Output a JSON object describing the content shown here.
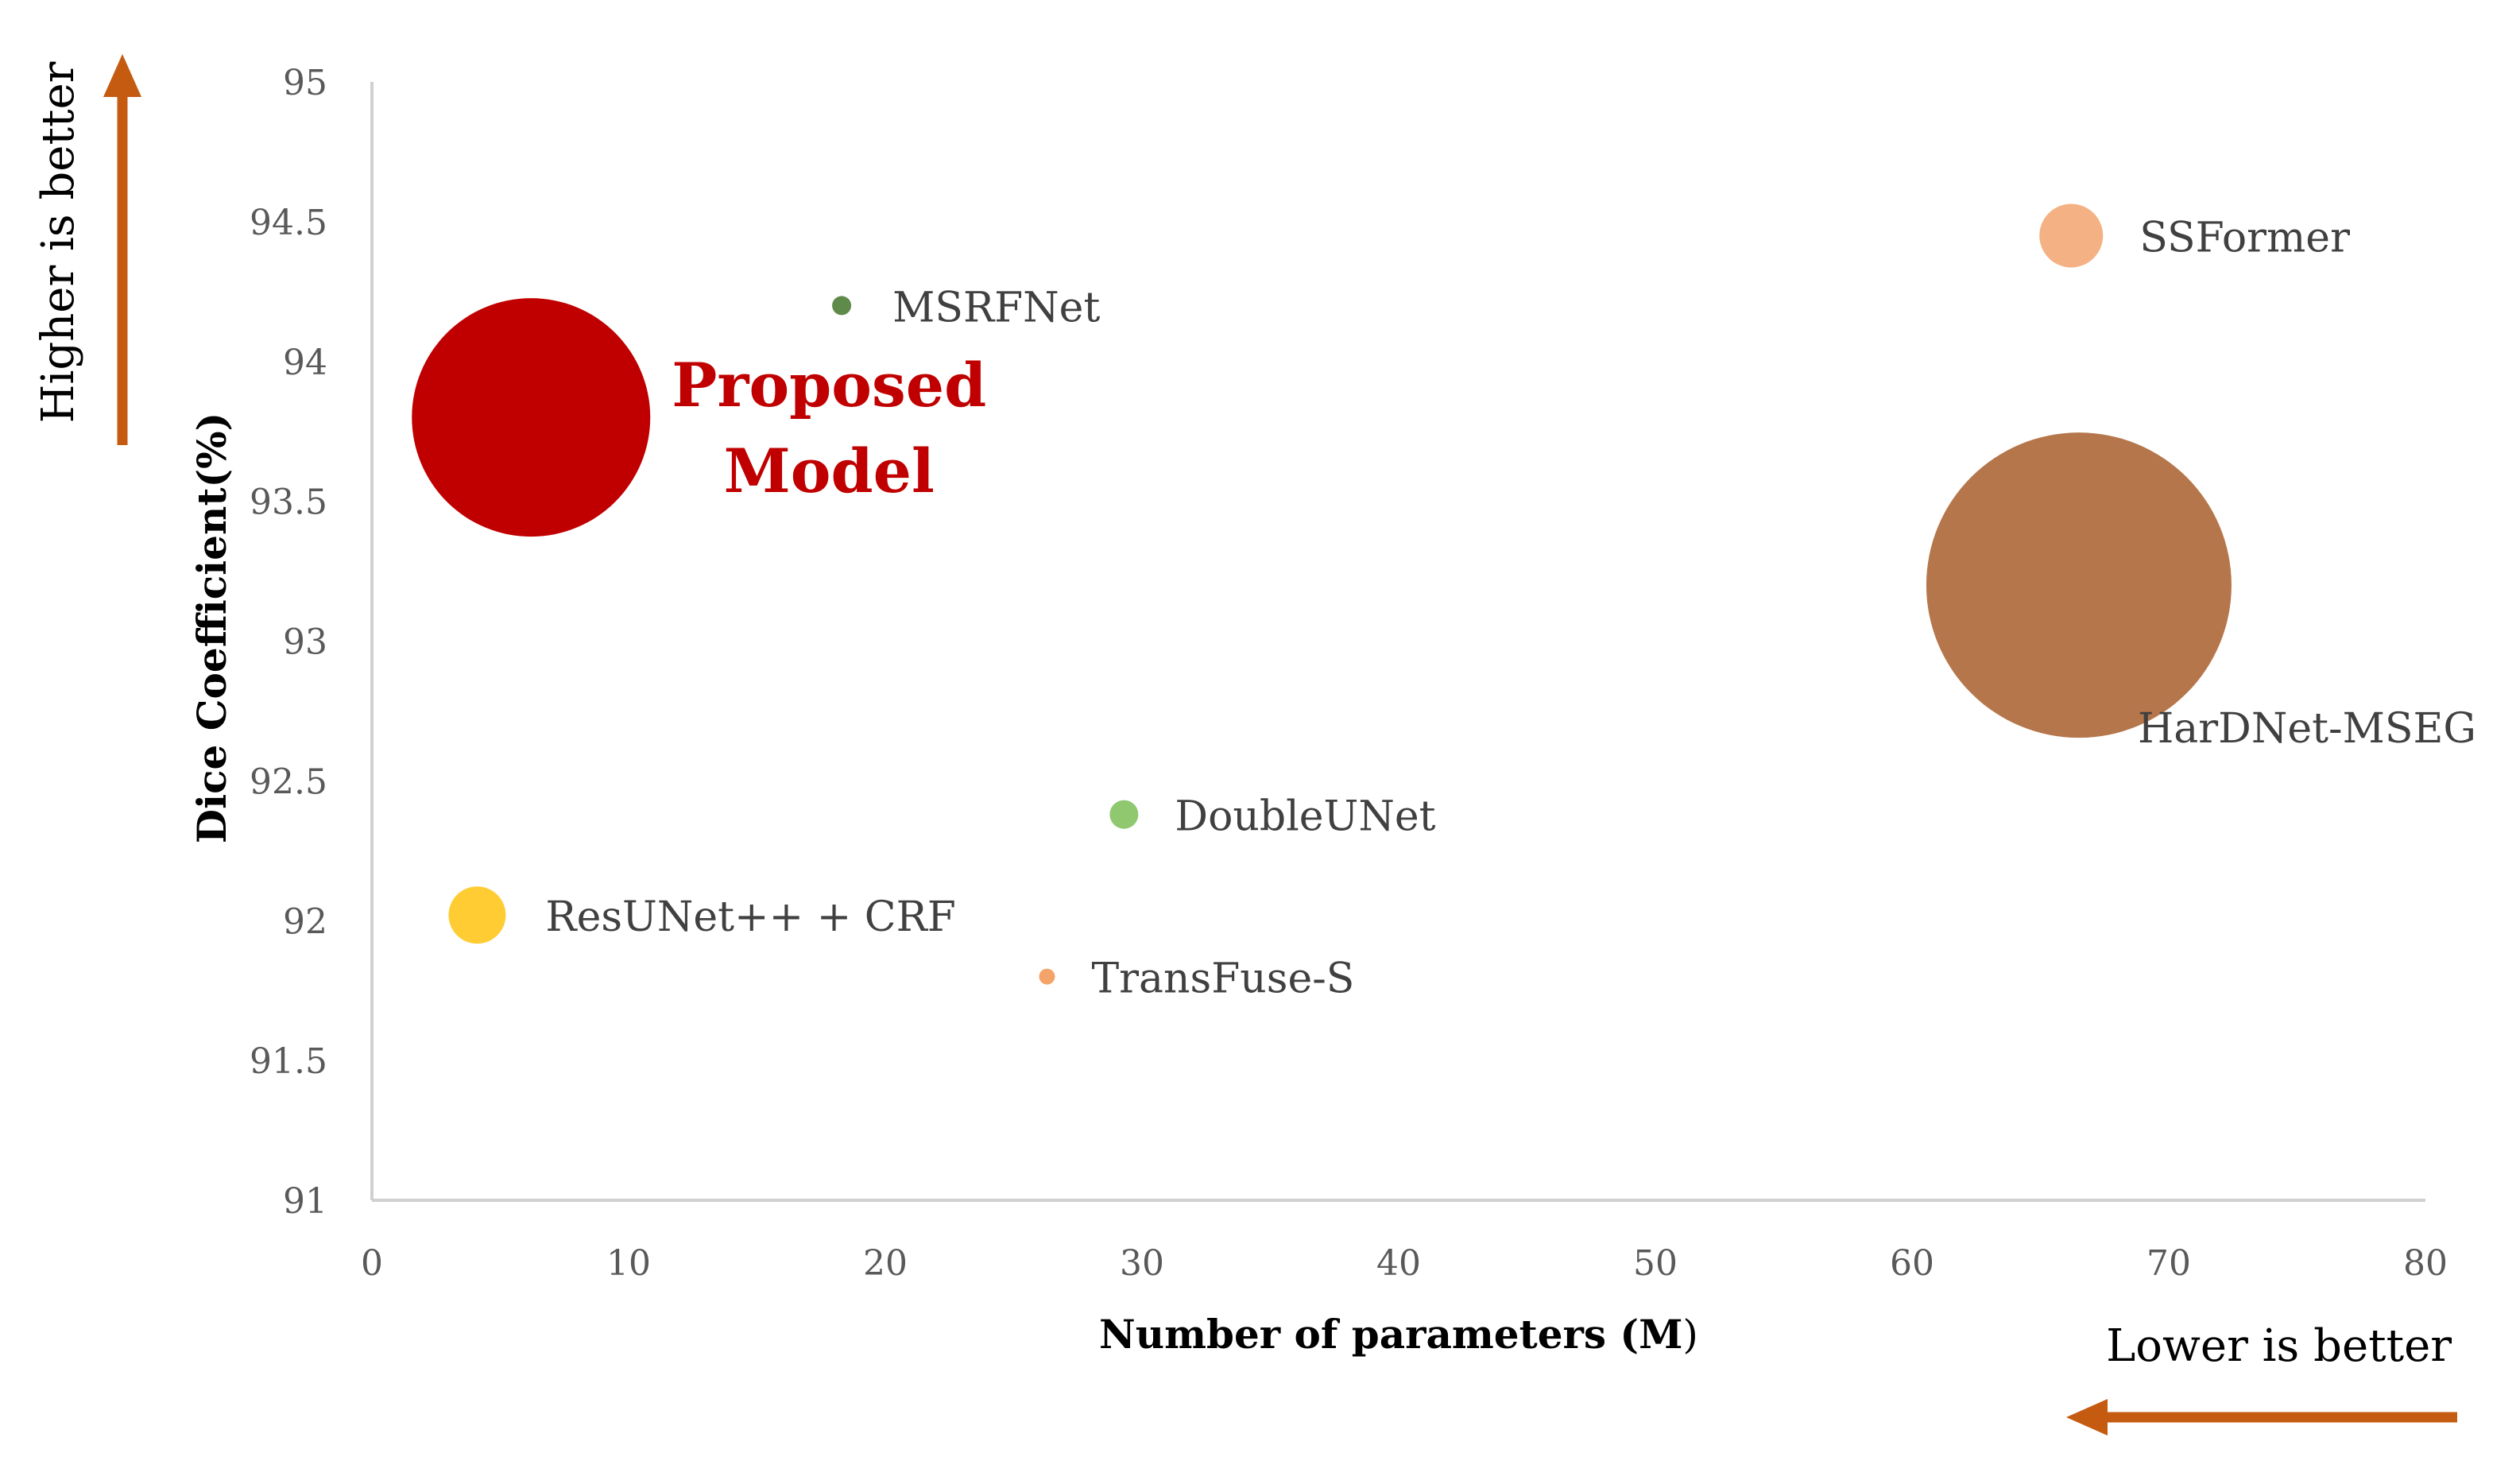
{
  "chart_data": {
    "type": "bubble",
    "title": "",
    "xlabel_bold": "Number of parameters (M",
    "xlabel_tail": ")",
    "ylabel": "Dice Coefficient(%)",
    "xlim": [
      0,
      80
    ],
    "ylim": [
      91,
      95
    ],
    "x_ticks": [
      0,
      10,
      20,
      30,
      40,
      50,
      60,
      70,
      80
    ],
    "y_ticks": [
      "91",
      "91.5",
      "92",
      "92.5",
      "93",
      "93.5",
      "94",
      "94.5",
      "95"
    ],
    "grid": false,
    "legend": "none",
    "series": [
      {
        "name": "Proposed Model",
        "label_lines": [
          "Proposed",
          "Model"
        ],
        "x": 6.2,
        "y": 93.8,
        "size": 150,
        "color": "#c00000",
        "label_color": "#c00000",
        "label_bold": true
      },
      {
        "name": "MSRFNet",
        "label_lines": [
          "MSRFNet"
        ],
        "x": 18.3,
        "y": 94.2,
        "size": 12,
        "color": "#5e8a4a",
        "label_color": "#404040",
        "label_bold": false
      },
      {
        "name": "SSFormer",
        "label_lines": [
          "SSFormer"
        ],
        "x": 66.2,
        "y": 94.45,
        "size": 40,
        "color": "#f4b183",
        "label_color": "#404040",
        "label_bold": false
      },
      {
        "name": "HarDNet-MSEG",
        "label_lines": [
          "HarDNet-MSEG"
        ],
        "x": 66.5,
        "y": 93.2,
        "size": 192,
        "color": "#b5764b",
        "label_color": "#404040",
        "label_bold": false
      },
      {
        "name": "DoubleUNet",
        "label_lines": [
          "DoubleUNet"
        ],
        "x": 29.3,
        "y": 92.38,
        "size": 18,
        "color": "#8fc86f",
        "label_color": "#404040",
        "label_bold": false
      },
      {
        "name": "ResUNet++ + CRF",
        "label_lines": [
          "ResUNet++ + CRF"
        ],
        "x": 4.1,
        "y": 92.02,
        "size": 36,
        "color": "#ffcc33",
        "label_color": "#404040",
        "label_bold": false
      },
      {
        "name": "TransFuse-S",
        "label_lines": [
          "TransFuse-S"
        ],
        "x": 26.3,
        "y": 91.8,
        "size": 10,
        "color": "#f4a46a",
        "label_color": "#404040",
        "label_bold": false
      }
    ],
    "annotations": {
      "higher_label": "Higher is better",
      "lower_label": "Lower is better",
      "arrow_color": "#c55a11"
    }
  }
}
